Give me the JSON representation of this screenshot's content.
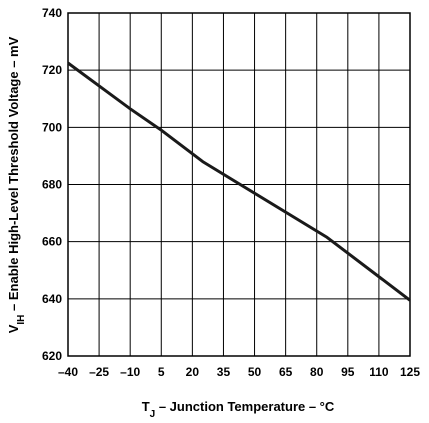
{
  "chart_data": {
    "type": "line",
    "xlabel": {
      "main": "T",
      "sub": "J",
      "rest": " – Junction Temperature – °C"
    },
    "ylabel": {
      "main": "V",
      "sub": "IH",
      "rest": " – Enable High-Level Threshold Voltage – mV"
    },
    "xlim": [
      -40,
      125
    ],
    "ylim": [
      620,
      740
    ],
    "x_ticks": [
      "–40",
      "–25",
      "–10",
      "5",
      "20",
      "35",
      "50",
      "65",
      "80",
      "95",
      "110",
      "125"
    ],
    "y_ticks": [
      "620",
      "640",
      "660",
      "680",
      "700",
      "720",
      "740"
    ],
    "grid": true,
    "series": [
      {
        "x": [
          -40,
          -10,
          5,
          25,
          85,
          125
        ],
        "y": [
          722.5,
          706.5,
          699,
          688,
          661.5,
          639.5
        ]
      }
    ]
  }
}
